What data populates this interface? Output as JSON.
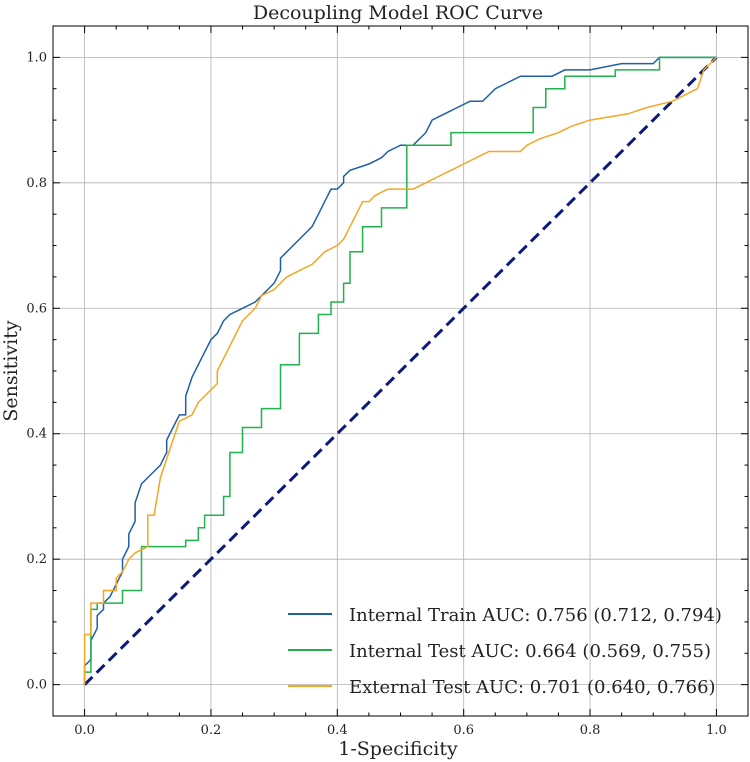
{
  "chart_data": {
    "type": "line",
    "title": "Decoupling Model ROC Curve",
    "xlabel": "1-Specificity",
    "ylabel": "Sensitivity",
    "xlim": [
      -0.05,
      1.05
    ],
    "ylim": [
      -0.05,
      1.05
    ],
    "grid": true,
    "legend_position": "lower-right",
    "x_ticks": [
      0.0,
      0.2,
      0.4,
      0.6,
      0.8,
      1.0
    ],
    "y_ticks": [
      0.0,
      0.2,
      0.4,
      0.6,
      0.8,
      1.0
    ],
    "x_tick_labels": [
      "0.0",
      "0.2",
      "0.4",
      "0.6",
      "0.8",
      "1.0"
    ],
    "y_tick_labels": [
      "0.0",
      "0.2",
      "0.4",
      "0.6",
      "0.8",
      "1.0"
    ],
    "series": [
      {
        "name": "Internal Train AUC: 0.756 (0.712, 0.794)",
        "color": "#1f5fa8",
        "points": [
          [
            0,
            0
          ],
          [
            0,
            0.03
          ],
          [
            0.01,
            0.04
          ],
          [
            0.01,
            0.07
          ],
          [
            0.02,
            0.09
          ],
          [
            0.02,
            0.11
          ],
          [
            0.03,
            0.12
          ],
          [
            0.03,
            0.13
          ],
          [
            0.04,
            0.14
          ],
          [
            0.05,
            0.16
          ],
          [
            0.06,
            0.18
          ],
          [
            0.06,
            0.2
          ],
          [
            0.07,
            0.22
          ],
          [
            0.07,
            0.24
          ],
          [
            0.08,
            0.26
          ],
          [
            0.08,
            0.29
          ],
          [
            0.09,
            0.32
          ],
          [
            0.1,
            0.33
          ],
          [
            0.11,
            0.34
          ],
          [
            0.12,
            0.35
          ],
          [
            0.13,
            0.37
          ],
          [
            0.13,
            0.39
          ],
          [
            0.14,
            0.41
          ],
          [
            0.15,
            0.43
          ],
          [
            0.16,
            0.43
          ],
          [
            0.16,
            0.46
          ],
          [
            0.17,
            0.49
          ],
          [
            0.18,
            0.51
          ],
          [
            0.19,
            0.53
          ],
          [
            0.2,
            0.55
          ],
          [
            0.21,
            0.56
          ],
          [
            0.22,
            0.58
          ],
          [
            0.23,
            0.59
          ],
          [
            0.25,
            0.6
          ],
          [
            0.27,
            0.61
          ],
          [
            0.28,
            0.62
          ],
          [
            0.29,
            0.63
          ],
          [
            0.3,
            0.64
          ],
          [
            0.31,
            0.66
          ],
          [
            0.31,
            0.68
          ],
          [
            0.33,
            0.7
          ],
          [
            0.35,
            0.72
          ],
          [
            0.36,
            0.73
          ],
          [
            0.37,
            0.75
          ],
          [
            0.38,
            0.77
          ],
          [
            0.39,
            0.79
          ],
          [
            0.4,
            0.79
          ],
          [
            0.41,
            0.8
          ],
          [
            0.41,
            0.81
          ],
          [
            0.42,
            0.82
          ],
          [
            0.45,
            0.83
          ],
          [
            0.47,
            0.84
          ],
          [
            0.48,
            0.85
          ],
          [
            0.5,
            0.86
          ],
          [
            0.52,
            0.86
          ],
          [
            0.53,
            0.87
          ],
          [
            0.54,
            0.88
          ],
          [
            0.55,
            0.9
          ],
          [
            0.57,
            0.91
          ],
          [
            0.59,
            0.92
          ],
          [
            0.61,
            0.93
          ],
          [
            0.63,
            0.93
          ],
          [
            0.64,
            0.94
          ],
          [
            0.65,
            0.95
          ],
          [
            0.67,
            0.96
          ],
          [
            0.69,
            0.97
          ],
          [
            0.71,
            0.97
          ],
          [
            0.74,
            0.97
          ],
          [
            0.76,
            0.98
          ],
          [
            0.8,
            0.98
          ],
          [
            0.85,
            0.99
          ],
          [
            0.9,
            0.99
          ],
          [
            0.91,
            1.0
          ],
          [
            1.0,
            1.0
          ]
        ]
      },
      {
        "name": "Internal Test AUC: 0.664 (0.569, 0.755)",
        "color": "#22b14c",
        "points": [
          [
            0,
            0
          ],
          [
            0,
            0.02
          ],
          [
            0.01,
            0.02
          ],
          [
            0.01,
            0.12
          ],
          [
            0.02,
            0.12
          ],
          [
            0.02,
            0.13
          ],
          [
            0.06,
            0.13
          ],
          [
            0.06,
            0.15
          ],
          [
            0.09,
            0.15
          ],
          [
            0.09,
            0.22
          ],
          [
            0.16,
            0.22
          ],
          [
            0.16,
            0.23
          ],
          [
            0.18,
            0.23
          ],
          [
            0.18,
            0.25
          ],
          [
            0.19,
            0.25
          ],
          [
            0.19,
            0.27
          ],
          [
            0.22,
            0.27
          ],
          [
            0.22,
            0.3
          ],
          [
            0.23,
            0.3
          ],
          [
            0.23,
            0.37
          ],
          [
            0.25,
            0.37
          ],
          [
            0.25,
            0.41
          ],
          [
            0.28,
            0.41
          ],
          [
            0.28,
            0.44
          ],
          [
            0.31,
            0.44
          ],
          [
            0.31,
            0.51
          ],
          [
            0.34,
            0.51
          ],
          [
            0.34,
            0.56
          ],
          [
            0.37,
            0.56
          ],
          [
            0.37,
            0.59
          ],
          [
            0.39,
            0.59
          ],
          [
            0.39,
            0.61
          ],
          [
            0.41,
            0.61
          ],
          [
            0.41,
            0.64
          ],
          [
            0.42,
            0.64
          ],
          [
            0.42,
            0.69
          ],
          [
            0.44,
            0.69
          ],
          [
            0.44,
            0.73
          ],
          [
            0.47,
            0.73
          ],
          [
            0.47,
            0.76
          ],
          [
            0.51,
            0.76
          ],
          [
            0.51,
            0.86
          ],
          [
            0.54,
            0.86
          ],
          [
            0.54,
            0.86
          ],
          [
            0.58,
            0.86
          ],
          [
            0.58,
            0.88
          ],
          [
            0.71,
            0.88
          ],
          [
            0.71,
            0.92
          ],
          [
            0.73,
            0.92
          ],
          [
            0.73,
            0.95
          ],
          [
            0.76,
            0.95
          ],
          [
            0.76,
            0.97
          ],
          [
            0.84,
            0.97
          ],
          [
            0.84,
            0.98
          ],
          [
            0.91,
            0.98
          ],
          [
            0.91,
            1.0
          ],
          [
            1.0,
            1.0
          ]
        ]
      },
      {
        "name": "External Test AUC: 0.701 (0.640, 0.766)",
        "color": "#f5a623",
        "points": [
          [
            0,
            0
          ],
          [
            0,
            0.08
          ],
          [
            0.01,
            0.08
          ],
          [
            0.01,
            0.13
          ],
          [
            0.03,
            0.13
          ],
          [
            0.03,
            0.15
          ],
          [
            0.05,
            0.15
          ],
          [
            0.05,
            0.17
          ],
          [
            0.06,
            0.18
          ],
          [
            0.07,
            0.2
          ],
          [
            0.08,
            0.21
          ],
          [
            0.1,
            0.22
          ],
          [
            0.1,
            0.27
          ],
          [
            0.11,
            0.27
          ],
          [
            0.12,
            0.33
          ],
          [
            0.14,
            0.39
          ],
          [
            0.15,
            0.42
          ],
          [
            0.17,
            0.43
          ],
          [
            0.18,
            0.45
          ],
          [
            0.19,
            0.46
          ],
          [
            0.2,
            0.47
          ],
          [
            0.21,
            0.48
          ],
          [
            0.21,
            0.5
          ],
          [
            0.22,
            0.52
          ],
          [
            0.23,
            0.54
          ],
          [
            0.24,
            0.56
          ],
          [
            0.25,
            0.58
          ],
          [
            0.26,
            0.59
          ],
          [
            0.27,
            0.6
          ],
          [
            0.28,
            0.62
          ],
          [
            0.3,
            0.63
          ],
          [
            0.31,
            0.64
          ],
          [
            0.32,
            0.65
          ],
          [
            0.34,
            0.66
          ],
          [
            0.36,
            0.67
          ],
          [
            0.38,
            0.69
          ],
          [
            0.4,
            0.7
          ],
          [
            0.41,
            0.71
          ],
          [
            0.42,
            0.73
          ],
          [
            0.43,
            0.75
          ],
          [
            0.44,
            0.77
          ],
          [
            0.45,
            0.77
          ],
          [
            0.46,
            0.78
          ],
          [
            0.48,
            0.79
          ],
          [
            0.52,
            0.79
          ],
          [
            0.54,
            0.8
          ],
          [
            0.56,
            0.81
          ],
          [
            0.58,
            0.82
          ],
          [
            0.6,
            0.83
          ],
          [
            0.62,
            0.84
          ],
          [
            0.64,
            0.85
          ],
          [
            0.69,
            0.85
          ],
          [
            0.7,
            0.86
          ],
          [
            0.72,
            0.87
          ],
          [
            0.75,
            0.88
          ],
          [
            0.77,
            0.89
          ],
          [
            0.8,
            0.9
          ],
          [
            0.86,
            0.91
          ],
          [
            0.89,
            0.92
          ],
          [
            0.93,
            0.93
          ],
          [
            0.97,
            0.95
          ],
          [
            0.98,
            0.98
          ],
          [
            0.99,
            0.99
          ],
          [
            1.0,
            1.0
          ]
        ]
      }
    ],
    "reference_line": {
      "name": "chance-diagonal",
      "color": "#0b1a7a",
      "style": "dashed",
      "points": [
        [
          0,
          0
        ],
        [
          1,
          1
        ]
      ]
    }
  }
}
